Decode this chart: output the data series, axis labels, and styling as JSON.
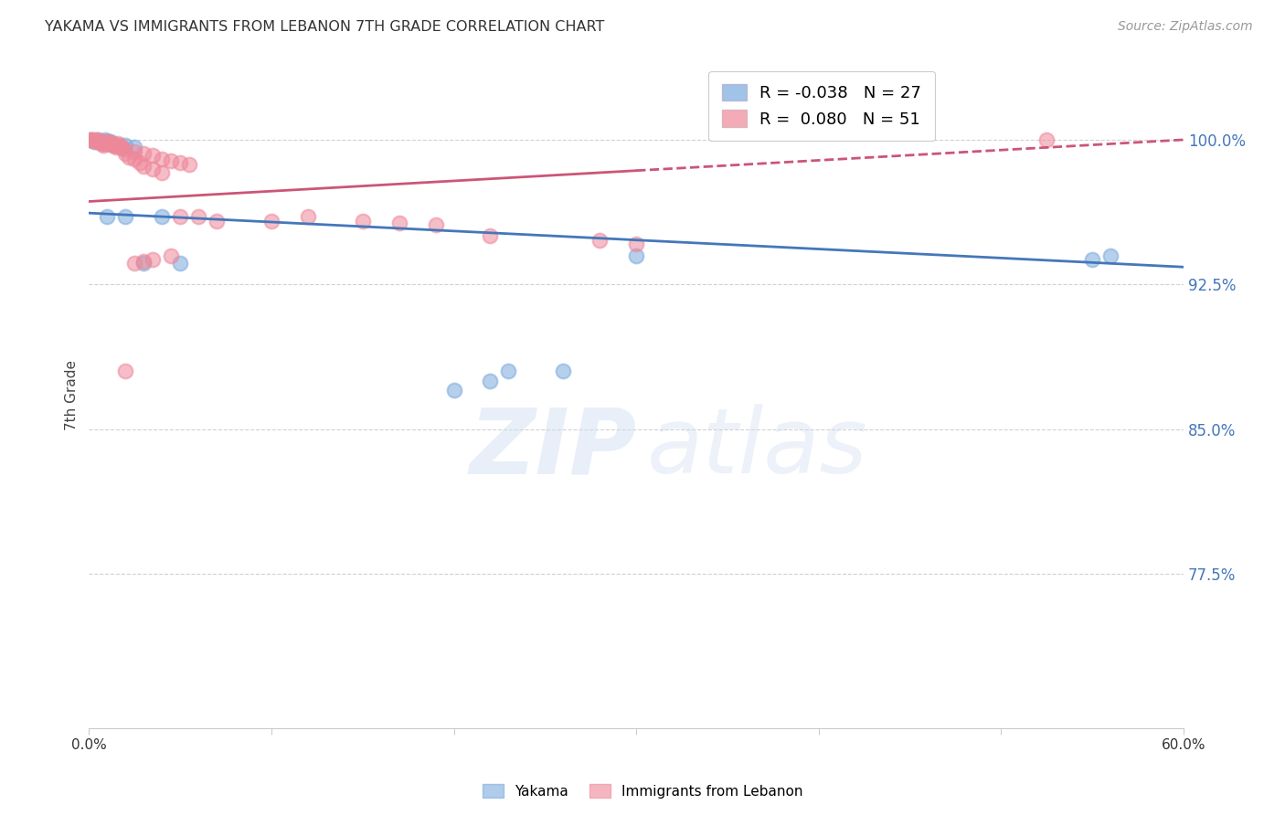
{
  "title": "YAKAMA VS IMMIGRANTS FROM LEBANON 7TH GRADE CORRELATION CHART",
  "source": "Source: ZipAtlas.com",
  "ylabel": "7th Grade",
  "yticks": [
    0.775,
    0.85,
    0.925,
    1.0
  ],
  "ytick_labels": [
    "77.5%",
    "85.0%",
    "92.5%",
    "100.0%"
  ],
  "xmin": 0.0,
  "xmax": 0.6,
  "ymin": 0.695,
  "ymax": 1.04,
  "blue_label": "Yakama",
  "pink_label": "Immigrants from Lebanon",
  "blue_r": -0.038,
  "blue_n": 27,
  "pink_r": 0.08,
  "pink_n": 51,
  "blue_color": "#7aaadd",
  "pink_color": "#ee8899",
  "blue_line_color": "#4477bb",
  "pink_line_color": "#cc5577",
  "blue_scatter_x": [
    0.001,
    0.003,
    0.005,
    0.006,
    0.007,
    0.008,
    0.009,
    0.01,
    0.011,
    0.012,
    0.013,
    0.015,
    0.018,
    0.02,
    0.025,
    0.03,
    0.05,
    0.2,
    0.22,
    0.23,
    0.26,
    0.3,
    0.55,
    0.56,
    0.01,
    0.02,
    0.04
  ],
  "blue_scatter_y": [
    1.0,
    0.999,
    1.0,
    0.999,
    0.999,
    0.998,
    1.0,
    0.999,
    0.998,
    0.999,
    0.998,
    0.997,
    0.996,
    0.997,
    0.996,
    0.936,
    0.936,
    0.87,
    0.875,
    0.88,
    0.88,
    0.94,
    0.938,
    0.94,
    0.96,
    0.96,
    0.96
  ],
  "pink_scatter_x": [
    0.001,
    0.002,
    0.003,
    0.004,
    0.005,
    0.006,
    0.007,
    0.008,
    0.009,
    0.01,
    0.011,
    0.012,
    0.013,
    0.014,
    0.015,
    0.016,
    0.017,
    0.018,
    0.019,
    0.02,
    0.022,
    0.025,
    0.028,
    0.03,
    0.035,
    0.04,
    0.05,
    0.06,
    0.07,
    0.1,
    0.12,
    0.15,
    0.17,
    0.19,
    0.22,
    0.28,
    0.3,
    0.025,
    0.03,
    0.035,
    0.04,
    0.045,
    0.05,
    0.055,
    0.045,
    0.035,
    0.03,
    0.025,
    0.02,
    0.525,
    0.01
  ],
  "pink_scatter_y": [
    1.0,
    1.0,
    1.0,
    0.999,
    1.0,
    0.999,
    0.998,
    0.997,
    0.999,
    0.998,
    0.999,
    0.998,
    0.997,
    0.997,
    0.996,
    0.998,
    0.997,
    0.996,
    0.995,
    0.993,
    0.991,
    0.99,
    0.988,
    0.986,
    0.985,
    0.983,
    0.96,
    0.96,
    0.958,
    0.958,
    0.96,
    0.958,
    0.957,
    0.956,
    0.95,
    0.948,
    0.946,
    0.994,
    0.993,
    0.992,
    0.99,
    0.989,
    0.988,
    0.987,
    0.94,
    0.938,
    0.937,
    0.936,
    0.88,
    1.0,
    0.998
  ],
  "blue_line_y0": 0.962,
  "blue_line_y1": 0.934,
  "pink_line_y0": 0.968,
  "pink_line_y1": 1.0
}
